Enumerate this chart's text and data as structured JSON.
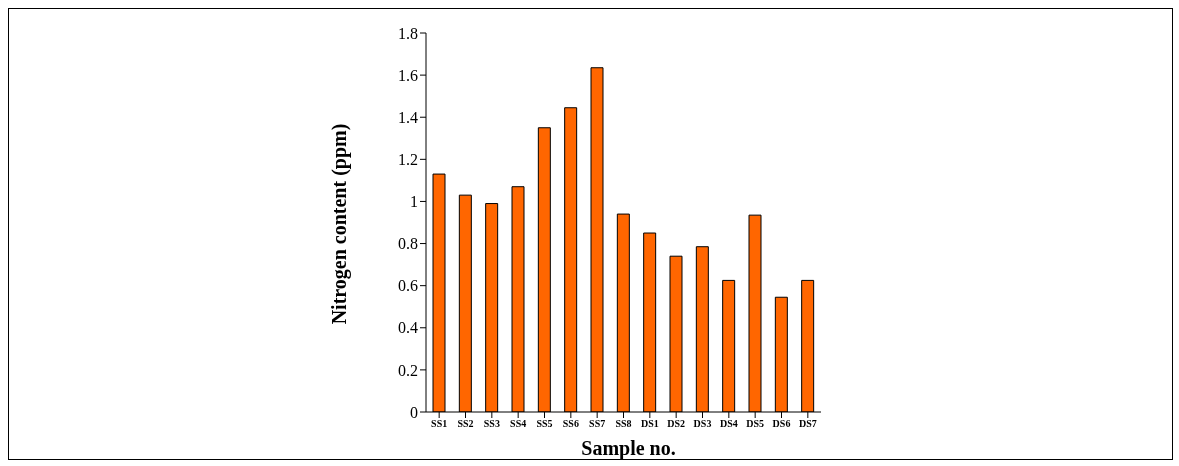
{
  "chart_data": {
    "type": "bar",
    "xlabel": "Sample no.",
    "ylabel": "Nitrogen content (ppm)",
    "categories": [
      "SS1",
      "SS2",
      "SS3",
      "SS4",
      "SS5",
      "SS6",
      "SS7",
      "SS8",
      "DS1",
      "DS2",
      "DS3",
      "DS4",
      "DS5",
      "DS6",
      "DS7"
    ],
    "values": [
      1.13,
      1.03,
      0.99,
      1.07,
      1.35,
      1.445,
      1.635,
      0.94,
      0.85,
      0.74,
      0.785,
      0.625,
      0.935,
      0.545,
      0.625
    ],
    "color": "#ff6600",
    "ylim": [
      0,
      1.8
    ],
    "yticks": [
      0,
      0.2,
      0.4,
      0.6,
      0.8,
      1,
      1.2,
      1.4,
      1.6,
      1.8
    ],
    "grid": false,
    "legend": false
  }
}
